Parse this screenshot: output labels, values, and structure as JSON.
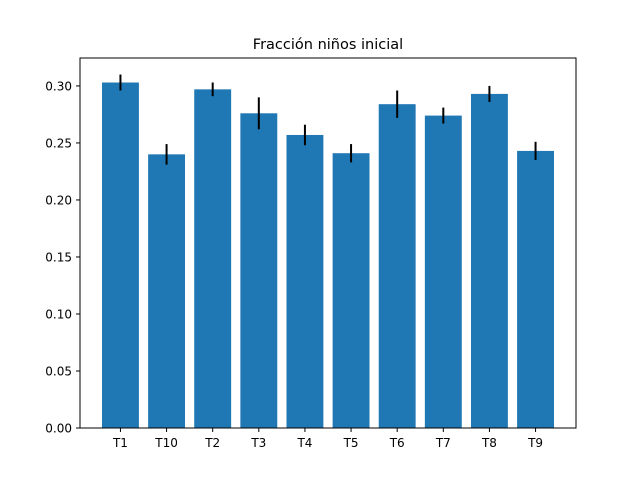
{
  "chart_data": {
    "type": "bar",
    "title": "Fracción niños inicial",
    "xlabel": "",
    "ylabel": "",
    "categories": [
      "T1",
      "T10",
      "T2",
      "T3",
      "T4",
      "T5",
      "T6",
      "T7",
      "T8",
      "T9"
    ],
    "values": [
      0.303,
      0.24,
      0.297,
      0.276,
      0.257,
      0.241,
      0.284,
      0.274,
      0.293,
      0.243
    ],
    "errors": [
      0.007,
      0.009,
      0.006,
      0.014,
      0.009,
      0.008,
      0.012,
      0.007,
      0.007,
      0.008
    ],
    "ylim": [
      0,
      0.3245
    ],
    "yticks": [
      0.0,
      0.05,
      0.1,
      0.15,
      0.2,
      0.25,
      0.3
    ],
    "ytick_labels": [
      "0.00",
      "0.05",
      "0.10",
      "0.15",
      "0.20",
      "0.25",
      "0.30"
    ],
    "grid": false,
    "legend": "none",
    "bar_color": "#1f77b4",
    "error_color": "#000000"
  }
}
